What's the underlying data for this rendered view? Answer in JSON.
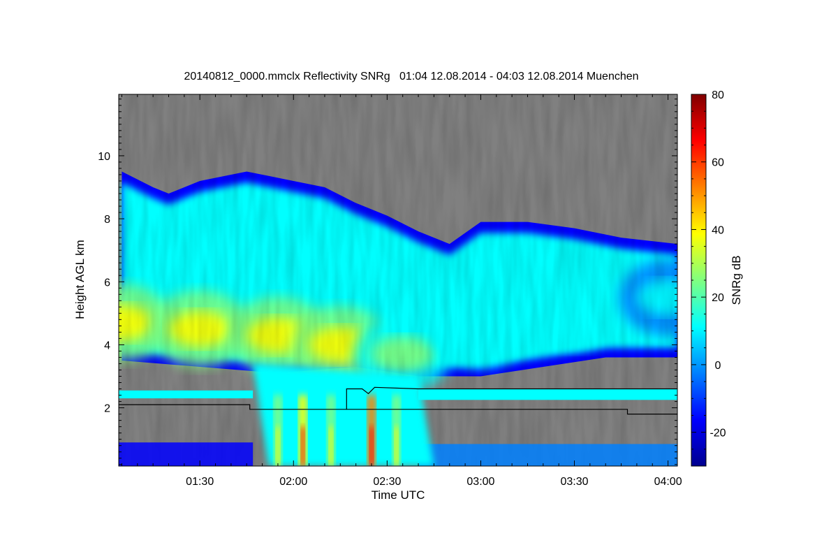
{
  "chart_data": {
    "type": "heatmap",
    "title": "20140812_0000.mmclx Reflectivity SNRg   01:04 12.08.2014 - 04:03 12.08.2014 Muenchen",
    "xlabel": "Time UTC",
    "ylabel": "Height AGL km",
    "colorbar_label": "SNRg dB",
    "x_ticks": [
      "01:30",
      "02:00",
      "02:30",
      "03:00",
      "03:30",
      "04:00"
    ],
    "y_ticks": [
      "2",
      "4",
      "6",
      "8",
      "10"
    ],
    "colorbar_ticks": [
      "-20",
      "0",
      "20",
      "40",
      "60",
      "80"
    ],
    "xlim": [
      "01:04",
      "04:03"
    ],
    "ylim": [
      0.15,
      11.95
    ],
    "colorbar_range": [
      -30,
      80
    ],
    "no_signal_color": "#808080",
    "colormap": [
      "#00008f",
      "#0000ff",
      "#0080ff",
      "#00ffff",
      "#80ff80",
      "#ffff00",
      "#ff8000",
      "#ff0000",
      "#800000"
    ],
    "echo_top_km": [
      [
        "01:05",
        9.5
      ],
      [
        "01:15",
        9.0
      ],
      [
        "01:20",
        8.8
      ],
      [
        "01:30",
        9.2
      ],
      [
        "01:45",
        9.5
      ],
      [
        "02:00",
        9.2
      ],
      [
        "02:10",
        9.0
      ],
      [
        "02:20",
        8.5
      ],
      [
        "02:30",
        8.1
      ],
      [
        "02:40",
        7.6
      ],
      [
        "02:50",
        7.2
      ],
      [
        "03:00",
        7.9
      ],
      [
        "03:15",
        7.9
      ],
      [
        "03:30",
        7.7
      ],
      [
        "03:45",
        7.4
      ],
      [
        "04:03",
        7.2
      ]
    ],
    "echo_base_km": [
      [
        "01:05",
        3.5
      ],
      [
        "01:30",
        3.3
      ],
      [
        "01:55",
        3.1
      ],
      [
        "02:20",
        3.3
      ],
      [
        "02:40",
        3.0
      ],
      [
        "03:00",
        3.0
      ],
      [
        "03:20",
        3.3
      ],
      [
        "03:40",
        3.6
      ],
      [
        "04:03",
        3.6
      ]
    ],
    "reflectivity_core": [
      [
        "01:05",
        4.7,
        40
      ],
      [
        "01:30",
        4.5,
        35
      ],
      [
        "01:55",
        4.3,
        38
      ],
      [
        "02:15",
        4.0,
        32
      ],
      [
        "02:35",
        3.7,
        25
      ],
      [
        "03:00",
        4.5,
        18
      ],
      [
        "03:30",
        5.1,
        15
      ],
      [
        "04:00",
        5.5,
        12
      ]
    ],
    "precip_shafts": [
      [
        "01:55",
        35
      ],
      [
        "02:03",
        60
      ],
      [
        "02:12",
        45
      ],
      [
        "02:25",
        72
      ],
      [
        "02:33",
        40
      ]
    ],
    "line_series": {
      "color": "#000000",
      "points": [
        [
          "01:04",
          2.1
        ],
        [
          "01:46",
          2.1
        ],
        [
          "01:46",
          1.95
        ],
        [
          "02:17",
          1.95
        ],
        [
          "02:17",
          2.6
        ],
        [
          "02:22",
          2.6
        ],
        [
          "02:24",
          2.45
        ],
        [
          "02:26",
          2.65
        ],
        [
          "02:40",
          2.6
        ],
        [
          "04:03",
          2.6
        ]
      ],
      "points_lower": [
        [
          "02:17",
          1.95
        ],
        [
          "03:47",
          1.95
        ],
        [
          "03:47",
          1.8
        ],
        [
          "04:03",
          1.8
        ]
      ]
    }
  }
}
